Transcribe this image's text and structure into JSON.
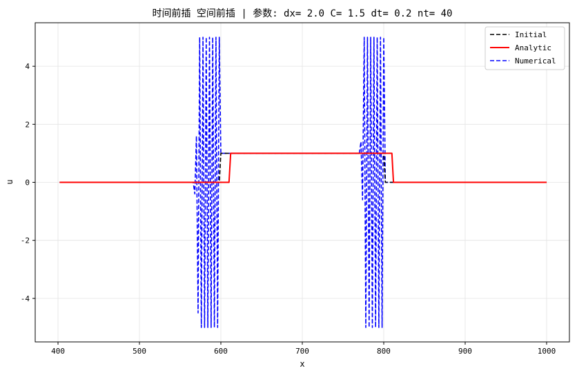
{
  "chart_data": {
    "type": "line",
    "title": "时间前插 空间前插 | 参数: dx= 2.0     C= 1.5    dt= 0.2    nt=  40",
    "xlabel": "x",
    "ylabel": "u",
    "xlim": [
      372,
      1028
    ],
    "ylim": [
      -5.5,
      5.5
    ],
    "xticks": [
      400,
      500,
      600,
      700,
      800,
      900,
      1000
    ],
    "yticks": [
      -4,
      -2,
      0,
      2,
      4
    ],
    "grid": true,
    "legend_position": "upper-right",
    "series": [
      {
        "name": "Initial",
        "color": "#000000",
        "style": "dashed",
        "x": [
          402,
          598,
          600,
          800,
          802,
          1000
        ],
        "y": [
          0,
          0,
          1,
          1,
          0,
          0
        ]
      },
      {
        "name": "Analytic",
        "color": "#ff0000",
        "style": "solid",
        "x": [
          402,
          610,
          612,
          810,
          812,
          1000
        ],
        "y": [
          0,
          0,
          1,
          1,
          0,
          0
        ]
      },
      {
        "name": "Numerical",
        "color": "#0000ff",
        "style": "dashed",
        "x": [
          402,
          566,
          568,
          570,
          572,
          574,
          576,
          578,
          580,
          582,
          584,
          586,
          588,
          590,
          592,
          594,
          596,
          598,
          600,
          602,
          770,
          772,
          774,
          776,
          778,
          780,
          782,
          784,
          786,
          788,
          790,
          792,
          794,
          796,
          798,
          800,
          802,
          804,
          1000
        ],
        "y": [
          0,
          0,
          -0.4,
          1.6,
          -4.5,
          5.0,
          -5.0,
          5.0,
          -5.0,
          5.0,
          -5.0,
          5.0,
          -5.0,
          5.0,
          -5.0,
          5.0,
          -5.0,
          5.0,
          1.0,
          1.0,
          1.0,
          1.4,
          -0.6,
          5.0,
          -5.0,
          5.0,
          -5.0,
          5.0,
          -5.0,
          5.0,
          -5.0,
          5.0,
          -5.0,
          5.0,
          -5.0,
          5.0,
          0.0,
          0.0,
          0.0
        ]
      }
    ]
  }
}
